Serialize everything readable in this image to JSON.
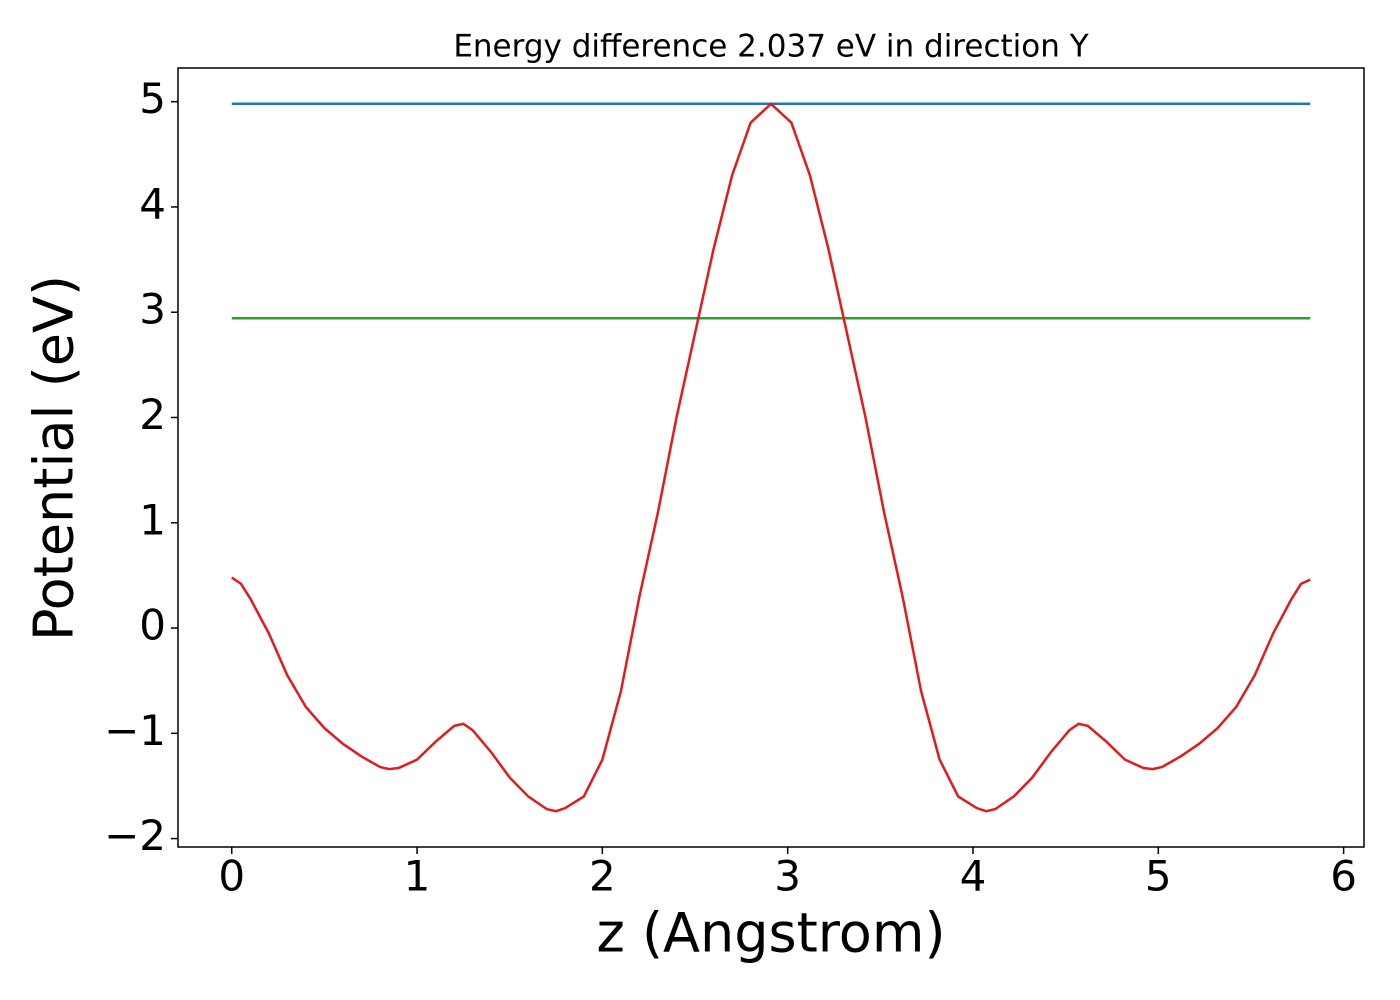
{
  "chart_data": {
    "type": "line",
    "title": "Energy difference 2.037 eV in direction Y",
    "xlabel": "z (Angstrom)",
    "ylabel": "Potential (eV)",
    "xlim": [
      -0.29,
      6.11
    ],
    "ylim": [
      -2.08,
      5.32
    ],
    "xticks": [
      0,
      1,
      2,
      3,
      4,
      5,
      6
    ],
    "yticks": [
      {
        "value": -2,
        "label": "−2"
      },
      {
        "value": -1,
        "label": "−1"
      },
      0,
      1,
      2,
      3,
      4,
      5
    ],
    "series": [
      {
        "color": "#1f77b4",
        "x": [
          0,
          5.82
        ],
        "values": [
          4.98,
          4.98
        ]
      },
      {
        "color": "#2ca02c",
        "x": [
          0,
          5.82
        ],
        "values": [
          2.943,
          2.943
        ]
      },
      {
        "color": "#e41a1c",
        "x": [
          0,
          0.05,
          0.1,
          0.2,
          0.3,
          0.4,
          0.5,
          0.6,
          0.7,
          0.8,
          0.85,
          0.9,
          1.0,
          1.1,
          1.2,
          1.25,
          1.3,
          1.4,
          1.5,
          1.6,
          1.7,
          1.75,
          1.8,
          1.9,
          2.0,
          2.1,
          2.2,
          2.3,
          2.4,
          2.5,
          2.6,
          2.7,
          2.8,
          2.91,
          3.02,
          3.12,
          3.22,
          3.32,
          3.42,
          3.52,
          3.62,
          3.72,
          3.82,
          3.92,
          4.02,
          4.07,
          4.12,
          4.22,
          4.32,
          4.42,
          4.52,
          4.57,
          4.62,
          4.72,
          4.82,
          4.92,
          4.97,
          5.02,
          5.12,
          5.22,
          5.32,
          5.42,
          5.52,
          5.62,
          5.72,
          5.77,
          5.82
        ],
        "values": [
          0.48,
          0.42,
          0.28,
          -0.05,
          -0.45,
          -0.75,
          -0.95,
          -1.1,
          -1.22,
          -1.32,
          -1.34,
          -1.33,
          -1.25,
          -1.08,
          -0.93,
          -0.91,
          -0.97,
          -1.18,
          -1.42,
          -1.6,
          -1.72,
          -1.74,
          -1.71,
          -1.6,
          -1.25,
          -0.6,
          0.3,
          1.1,
          2.0,
          2.8,
          3.6,
          4.3,
          4.8,
          4.98,
          4.8,
          4.3,
          3.6,
          2.8,
          2.0,
          1.1,
          0.3,
          -0.6,
          -1.25,
          -1.6,
          -1.71,
          -1.74,
          -1.72,
          -1.6,
          -1.42,
          -1.18,
          -0.97,
          -0.91,
          -0.93,
          -1.08,
          -1.25,
          -1.33,
          -1.34,
          -1.32,
          -1.22,
          -1.1,
          -0.95,
          -0.75,
          -0.45,
          -0.05,
          0.28,
          0.42,
          0.46
        ]
      }
    ]
  }
}
